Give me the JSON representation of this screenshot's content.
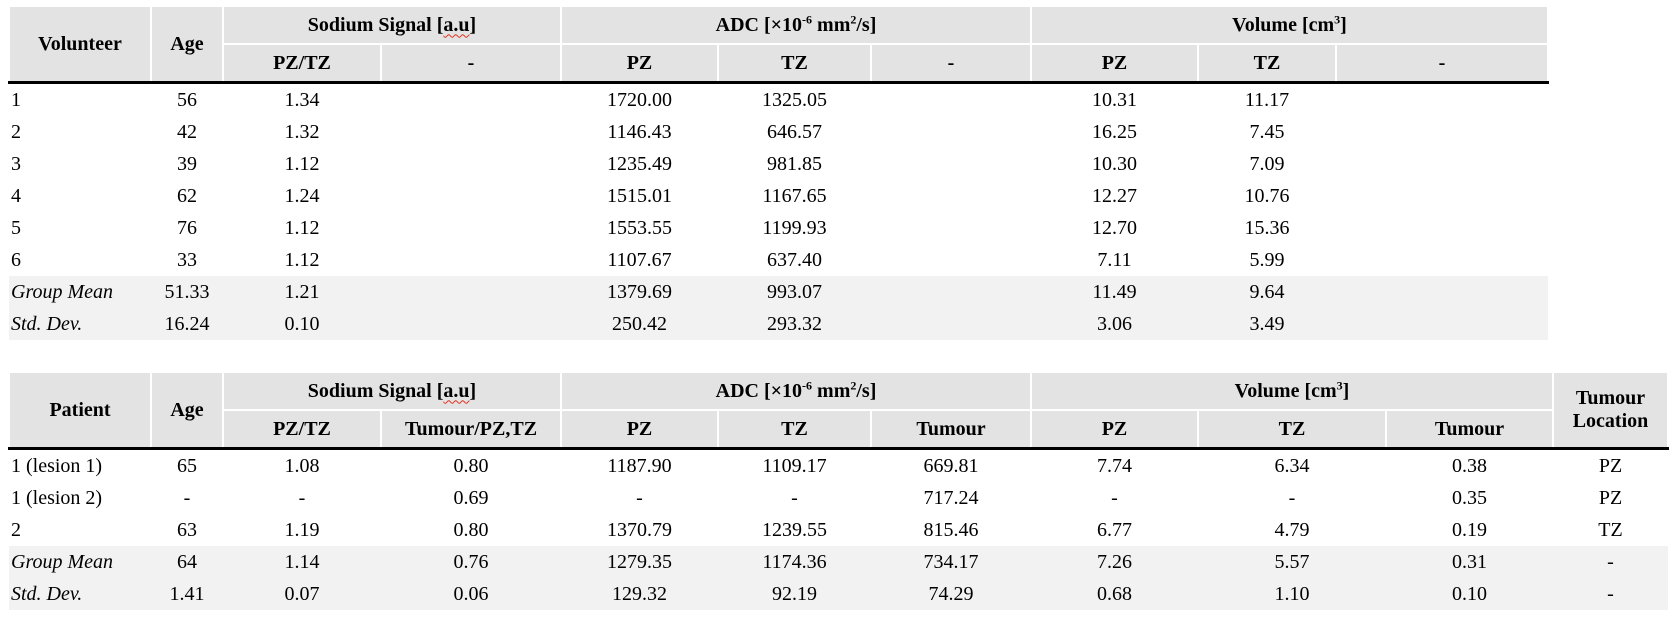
{
  "colors": {
    "header_bg": "#e3e3e3",
    "summary_row_bg": "#f2f2f2",
    "top_rule": "#595959",
    "header_rule": "#000000",
    "spellcheck_squiggle": "#e0301e"
  },
  "table1": {
    "headers": {
      "col_entity": "Volunteer",
      "col_age": "Age",
      "sodium_prefix": "Sodium Signal [",
      "sodium_word": "a.u",
      "sodium_suffix": "]",
      "sodium_sub": [
        "PZ/TZ",
        "-"
      ],
      "adc_p0": "ADC [×10",
      "adc_sup1": "-6",
      "adc_p2": " mm",
      "adc_sup3": "2",
      "adc_p4": "/s]",
      "adc_sub": [
        "PZ",
        "TZ",
        "-"
      ],
      "vol_p0": "Volume [cm",
      "vol_sup1": "3",
      "vol_p2": "]",
      "vol_sub": [
        "PZ",
        "TZ",
        "-"
      ]
    },
    "rows": [
      {
        "label": "1",
        "italic": false,
        "shaded": false,
        "cells": [
          "56",
          "1.34",
          "",
          "1720.00",
          "1325.05",
          "",
          "10.31",
          "11.17",
          ""
        ]
      },
      {
        "label": "2",
        "italic": false,
        "shaded": false,
        "cells": [
          "42",
          "1.32",
          "",
          "1146.43",
          "646.57",
          "",
          "16.25",
          "7.45",
          ""
        ]
      },
      {
        "label": "3",
        "italic": false,
        "shaded": false,
        "cells": [
          "39",
          "1.12",
          "",
          "1235.49",
          "981.85",
          "",
          "10.30",
          "7.09",
          ""
        ]
      },
      {
        "label": "4",
        "italic": false,
        "shaded": false,
        "cells": [
          "62",
          "1.24",
          "",
          "1515.01",
          "1167.65",
          "",
          "12.27",
          "10.76",
          ""
        ]
      },
      {
        "label": "5",
        "italic": false,
        "shaded": false,
        "cells": [
          "76",
          "1.12",
          "",
          "1553.55",
          "1199.93",
          "",
          "12.70",
          "15.36",
          ""
        ]
      },
      {
        "label": "6",
        "italic": false,
        "shaded": false,
        "cells": [
          "33",
          "1.12",
          "",
          "1107.67",
          "637.40",
          "",
          "7.11",
          "5.99",
          ""
        ]
      },
      {
        "label": "Group Mean",
        "italic": true,
        "shaded": true,
        "cells": [
          "51.33",
          "1.21",
          "",
          "1379.69",
          "993.07",
          "",
          "11.49",
          "9.64",
          ""
        ]
      },
      {
        "label": "Std. Dev.",
        "italic": true,
        "shaded": true,
        "cells": [
          "16.24",
          "0.10",
          "",
          "250.42",
          "293.32",
          "",
          "3.06",
          "3.49",
          ""
        ]
      }
    ]
  },
  "table2": {
    "headers": {
      "col_entity": "Patient",
      "col_age": "Age",
      "sodium_prefix": "Sodium Signal [",
      "sodium_word": "a.u",
      "sodium_suffix": "]",
      "sodium_sub": [
        "PZ/TZ",
        "Tumour/PZ,TZ"
      ],
      "adc_p0": "ADC [×10",
      "adc_sup1": "-6",
      "adc_p2": " mm",
      "adc_sup3": "2",
      "adc_p4": "/s]",
      "adc_sub": [
        "PZ",
        "TZ",
        "Tumour"
      ],
      "vol_p0": "Volume [cm",
      "vol_sup1": "3",
      "vol_p2": "]",
      "vol_sub": [
        "PZ",
        "TZ",
        "Tumour"
      ],
      "col_location": "Tumour Location"
    },
    "rows": [
      {
        "label": "1 (lesion 1)",
        "italic": false,
        "shaded": false,
        "cells": [
          "65",
          "1.08",
          "0.80",
          "1187.90",
          "1109.17",
          "669.81",
          "7.74",
          "6.34",
          "0.38",
          "PZ"
        ]
      },
      {
        "label": "1 (lesion 2)",
        "italic": false,
        "shaded": false,
        "cells": [
          "-",
          "-",
          "0.69",
          "-",
          "-",
          "717.24",
          "-",
          "-",
          "0.35",
          "PZ"
        ]
      },
      {
        "label": "2",
        "italic": false,
        "shaded": false,
        "cells": [
          "63",
          "1.19",
          "0.80",
          "1370.79",
          "1239.55",
          "815.46",
          "6.77",
          "4.79",
          "0.19",
          "TZ"
        ]
      },
      {
        "label": "Group Mean",
        "italic": true,
        "shaded": true,
        "cells": [
          "64",
          "1.14",
          "0.76",
          "1279.35",
          "1174.36",
          "734.17",
          "7.26",
          "5.57",
          "0.31",
          "-"
        ]
      },
      {
        "label": "Std. Dev.",
        "italic": true,
        "shaded": true,
        "cells": [
          "1.41",
          "0.07",
          "0.06",
          "129.32",
          "92.19",
          "74.29",
          "0.68",
          "1.10",
          "0.10",
          "-"
        ]
      }
    ]
  }
}
